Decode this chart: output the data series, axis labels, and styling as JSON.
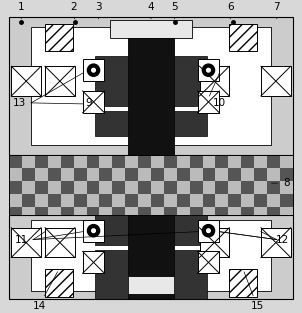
{
  "fig_width": 3.02,
  "fig_height": 3.13,
  "dpi": 100,
  "colors": {
    "white": "#ffffff",
    "light_gray": "#cccccc",
    "very_light_gray": "#e8e8e8",
    "medium_gray": "#999999",
    "dark_gray": "#333333",
    "very_dark": "#111111",
    "black": "#000000",
    "checker_dark": "#555555",
    "checker_light": "#bbbbbb",
    "frame_bg": "#d8d8d8",
    "outer_frame": "#c0c0c0"
  }
}
